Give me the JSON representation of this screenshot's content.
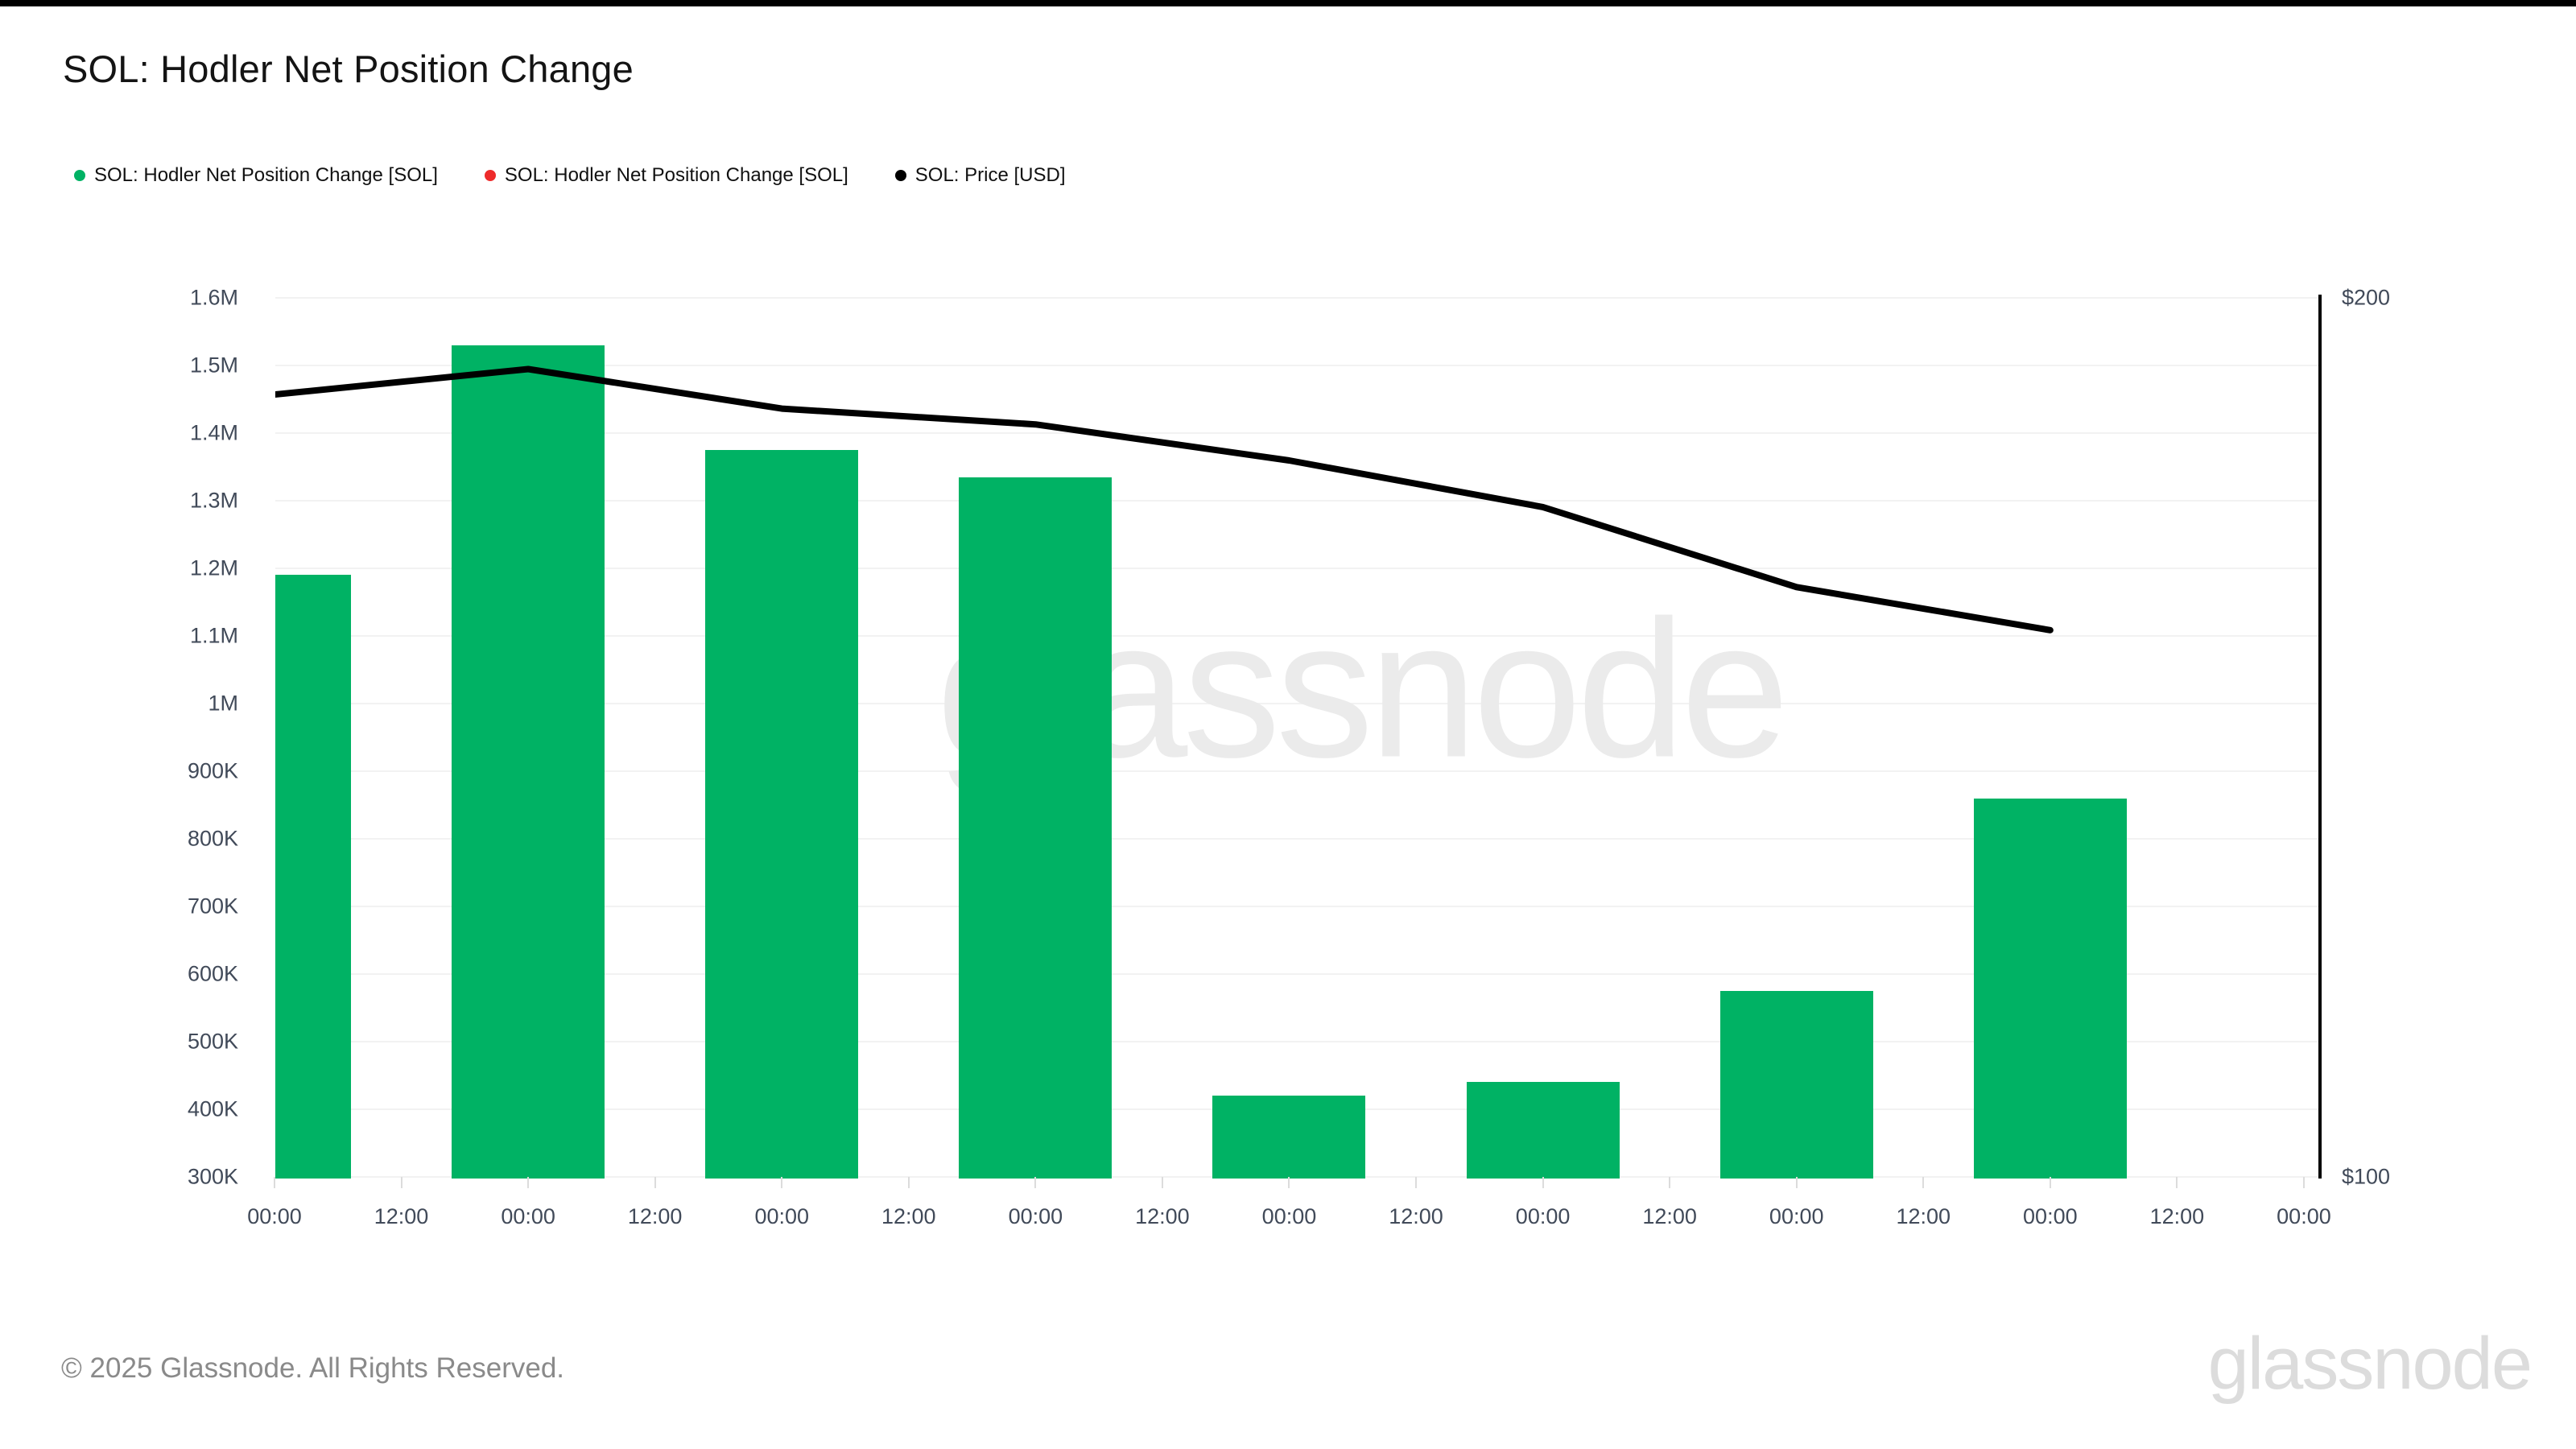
{
  "header": {
    "title": "SOL: Hodler Net Position Change"
  },
  "legend": {
    "items": [
      {
        "label": "SOL: Hodler Net Position Change [SOL]",
        "color": "#00b264",
        "icon": "green-dot-icon"
      },
      {
        "label": "SOL: Hodler Net Position Change [SOL]",
        "color": "#ee2b2b",
        "icon": "red-dot-icon"
      },
      {
        "label": "SOL: Price [USD]",
        "color": "#000000",
        "icon": "black-dot-icon"
      }
    ]
  },
  "watermark": {
    "text": "glassnode"
  },
  "footer": {
    "copyright": "© 2025 Glassnode. All Rights Reserved.",
    "logo_text": "glassnode"
  },
  "chart_data": {
    "type": "bar+line",
    "title": "SOL: Hodler Net Position Change",
    "grid": true,
    "x_tick_labels": [
      "00:00",
      "12:00",
      "00:00",
      "12:00",
      "00:00",
      "12:00",
      "00:00",
      "12:00",
      "00:00",
      "12:00",
      "00:00",
      "12:00",
      "00:00",
      "12:00",
      "00:00",
      "12:00",
      "00:00"
    ],
    "left_axis": {
      "labels_top_to_bottom": [
        "1.6M",
        "1.5M",
        "1.4M",
        "1.3M",
        "1.2M",
        "1.1M",
        "1M",
        "900K",
        "800K",
        "700K",
        "600K",
        "500K",
        "400K",
        "300K"
      ],
      "min": 300000,
      "max": 1600000,
      "tick_step": 100000,
      "unit": "SOL"
    },
    "right_axis": {
      "top_label": "$200",
      "bottom_label": "$100",
      "min": 100,
      "max": 200,
      "unit": "USD"
    },
    "series": [
      {
        "name": "SOL: Hodler Net Position Change [SOL]",
        "kind": "bar",
        "color": "#00b264",
        "tick_index": [
          0,
          2,
          4,
          6,
          8,
          10,
          12,
          14
        ],
        "values": [
          1190000,
          1530000,
          1375000,
          1335000,
          420000,
          440000,
          575000,
          860000
        ]
      },
      {
        "name": "SOL: Price [USD]",
        "kind": "line",
        "color": "#000000",
        "tick_index": [
          0,
          2,
          4,
          6,
          8,
          10,
          12,
          14
        ],
        "values": [
          189.0,
          191.9,
          187.4,
          185.6,
          181.5,
          176.2,
          167.1,
          162.2
        ]
      }
    ]
  }
}
